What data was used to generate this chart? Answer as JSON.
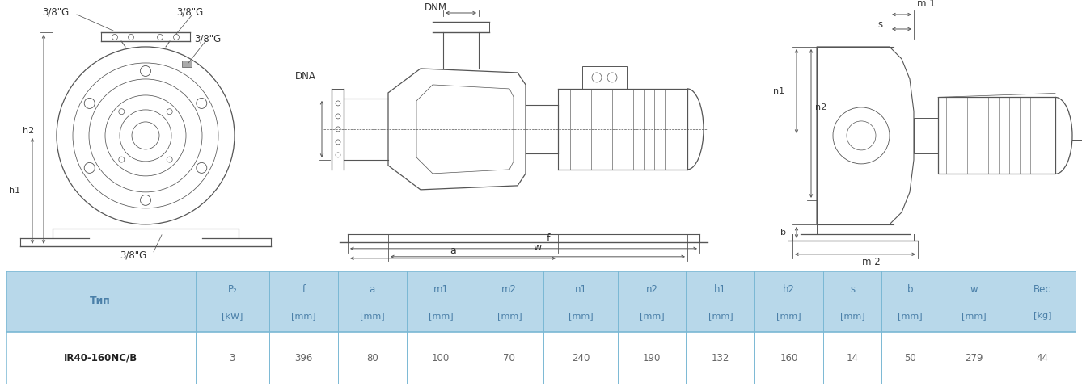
{
  "bg_color": "#ffffff",
  "table_header_bg": "#b8d8ea",
  "table_data_bg": "#ffffff",
  "table_border_color": "#7ab8d4",
  "header_text_color": "#4a7fa8",
  "data_text_color": "#666666",
  "bold_text_color": "#222222",
  "line_color": "#555555",
  "dim_color": "#555555",
  "label_color": "#333333",
  "col_headers_1": [
    "Тип",
    "P₂",
    "f",
    "a",
    "m1",
    "m2",
    "n1",
    "n2",
    "h1",
    "h2",
    "s",
    "b",
    "w",
    "Вес"
  ],
  "col_headers_2": [
    "",
    "[kW]",
    "[mm]",
    "[mm]",
    "[mm]",
    "[mm]",
    "[mm]",
    "[mm]",
    "[mm]",
    "[mm]",
    "[mm]",
    "[mm]",
    "[mm]",
    "[kg]"
  ],
  "data_row": [
    "IR40-160NC/B",
    "3",
    "396",
    "80",
    "100",
    "70",
    "240",
    "190",
    "132",
    "160",
    "14",
    "50",
    "279",
    "44"
  ],
  "col_widths_rel": [
    1.8,
    0.7,
    0.65,
    0.65,
    0.65,
    0.65,
    0.7,
    0.65,
    0.65,
    0.65,
    0.55,
    0.55,
    0.65,
    0.65
  ]
}
